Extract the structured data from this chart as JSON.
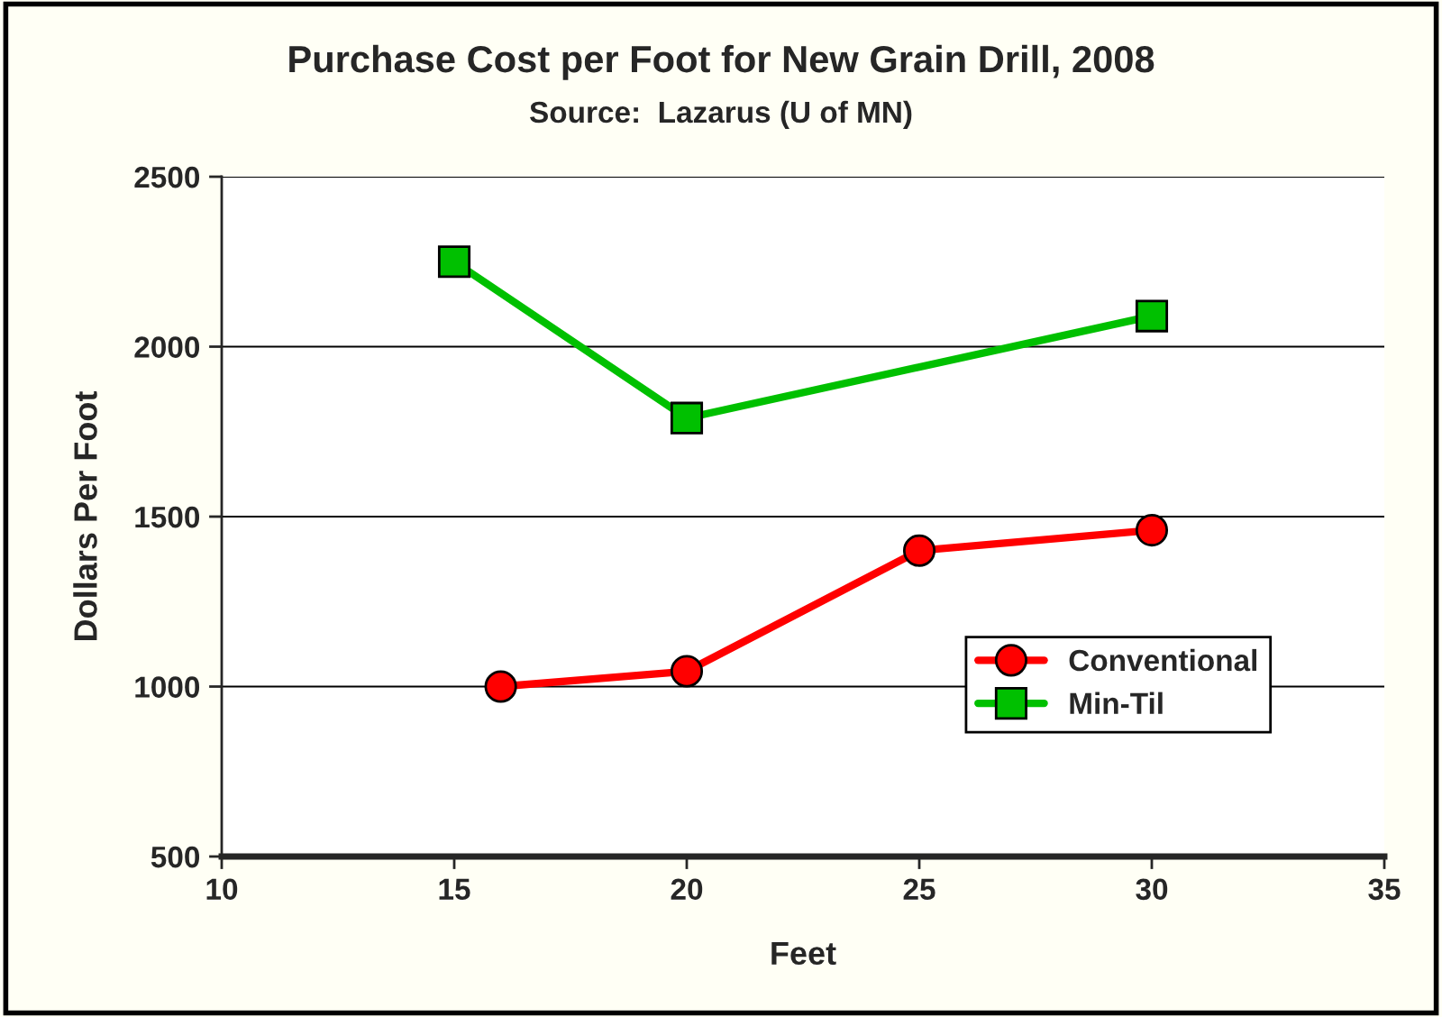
{
  "chart_data": {
    "type": "line",
    "title": "Purchase Cost per Foot for New Grain Drill, 2008",
    "subtitle": "Source:  Lazarus (U of MN)",
    "xlabel": "Feet",
    "ylabel": "Dollars Per Foot",
    "series": [
      {
        "name": "Conventional",
        "color": "#ff0000",
        "marker": "circle",
        "x": [
          16,
          20,
          25,
          30
        ],
        "values": [
          1000,
          1045,
          1400,
          1460
        ]
      },
      {
        "name": "Min-Til",
        "color": "#00c000",
        "marker": "square",
        "x": [
          15,
          20,
          30
        ],
        "values": [
          2250,
          1790,
          2090
        ]
      }
    ],
    "xlim": [
      10,
      35
    ],
    "xticks": [
      10,
      15,
      20,
      25,
      30,
      35
    ],
    "ylim": [
      500,
      2500
    ],
    "yticks": [
      500,
      1000,
      1500,
      2000,
      2500
    ],
    "grid": "y",
    "legend": "right"
  }
}
